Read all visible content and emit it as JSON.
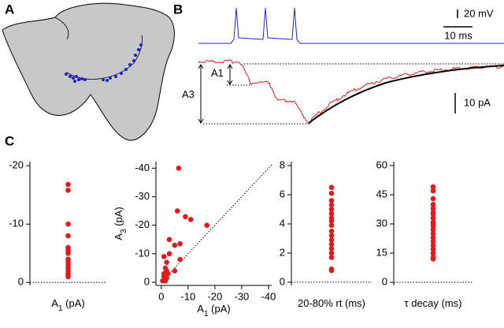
{
  "panel_labels": [
    "A",
    "B",
    "C"
  ],
  "scale_bars": {
    "voltage": "20 mV",
    "time": "10 ms",
    "current": "10 pA"
  },
  "trace_labels": {
    "a1": [
      "A",
      "1"
    ],
    "a3": [
      "A",
      "3"
    ]
  },
  "chart_data": [
    {
      "type": "strip",
      "xlabel": [
        "A",
        "1",
        " (pA)"
      ],
      "color": "#e31a1c",
      "values": [
        -16.8,
        -15.8,
        -10,
        -8,
        -6,
        -5.5,
        -5,
        -4,
        -3.5,
        -3,
        -2.5,
        -2,
        -1.5,
        -1.2,
        -1
      ],
      "ylim": [
        0.5,
        -20.7
      ],
      "yticks": [
        -20,
        -10,
        0
      ],
      "zero_line": true
    },
    {
      "type": "scatter",
      "xlabel": [
        "A",
        "1",
        " (pA)"
      ],
      "ylabel": [
        "A",
        "3",
        " (pA)"
      ],
      "color": "#e31a1c",
      "x": [
        -6.5,
        -6,
        -9,
        -11,
        -17,
        -3,
        -5,
        -7,
        -1,
        -3,
        -2,
        -7,
        -1.5,
        -2,
        -1,
        -2.5,
        -5,
        -1,
        -2,
        -0.5,
        -1.5
      ],
      "values": [
        -40,
        -25,
        -23,
        -22,
        -20,
        -15,
        -13,
        -13.5,
        -9,
        -10,
        -7,
        -8,
        -5,
        -4,
        -3,
        -3,
        -4,
        -2,
        -1.5,
        -0.5,
        -0.5
      ],
      "xlim": [
        2,
        -41.2
      ],
      "xticks": [
        0,
        -10,
        -20,
        -30,
        -40
      ],
      "ylim": [
        1.1,
        -42.3
      ],
      "yticks": [
        -40,
        -30,
        -20,
        -10,
        0
      ],
      "identity_line": true
    },
    {
      "type": "strip",
      "xlabel": [
        "20-80% rt (ms)"
      ],
      "color": "#e31a1c",
      "values": [
        6.5,
        6.1,
        5.6,
        5.3,
        5,
        4.7,
        4.4,
        4.2,
        3.9,
        3.5,
        3.2,
        2.9,
        2.6,
        2.3,
        2,
        1.7,
        0.9,
        0.8
      ],
      "ylim": [
        -0.22,
        8.27
      ],
      "yticks": [
        0,
        2,
        4,
        6,
        8
      ],
      "zero_line": true
    },
    {
      "type": "strip",
      "xlabel": [
        "τ decay (ms)"
      ],
      "color": "#e31a1c",
      "values": [
        49,
        47,
        43,
        40,
        38,
        36,
        35,
        33,
        31,
        30,
        29,
        27,
        25,
        23,
        21,
        19,
        17,
        15,
        13,
        12
      ],
      "ylim": [
        -1.6,
        62
      ],
      "yticks": [
        0,
        15,
        30,
        45,
        60
      ],
      "zero_line": true
    }
  ]
}
